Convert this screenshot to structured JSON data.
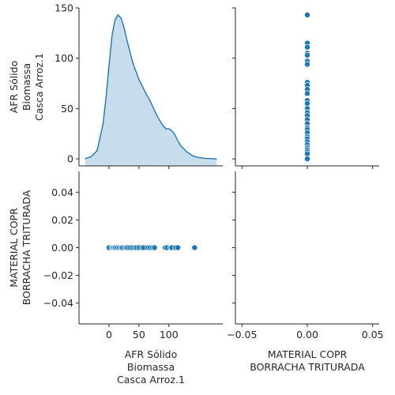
{
  "chart_data": [
    {
      "panel": "top-left",
      "type": "area",
      "description_visible": "kernel density estimate",
      "xlim": [
        -50,
        190
      ],
      "ylim": [
        -7,
        150
      ],
      "y_ticks": [
        0,
        50,
        100,
        150
      ],
      "ylabel_lines": [
        "AFR Sólido",
        "Biomassa",
        "Casca Arroz.1"
      ],
      "fill_color": "#1f77b4",
      "curve": {
        "x": [
          -40,
          -30,
          -20,
          -10,
          -5,
          0,
          5,
          10,
          15,
          20,
          25,
          30,
          40,
          50,
          60,
          70,
          80,
          90,
          95,
          100,
          105,
          110,
          115,
          120,
          130,
          140,
          150,
          160,
          170,
          180
        ],
        "y": [
          0.2,
          2,
          8,
          34,
          60,
          92,
          122,
          138,
          143,
          140,
          131,
          118,
          95,
          79,
          67,
          56,
          43,
          33,
          30,
          30,
          28,
          24,
          18,
          13,
          7,
          3,
          1.3,
          0.5,
          0.2,
          0
        ]
      }
    },
    {
      "panel": "top-right",
      "type": "scatter",
      "xlim": [
        -0.055,
        0.055
      ],
      "ylim": [
        -7,
        150
      ],
      "color": "#1f77b4",
      "points": {
        "x": [
          0,
          0,
          0,
          0,
          0,
          0,
          0,
          0,
          0,
          0,
          0,
          0,
          0,
          0,
          0,
          0,
          0,
          0,
          0,
          0,
          0,
          0,
          0,
          0,
          0,
          0,
          0,
          0,
          0,
          0
        ],
        "y": [
          143,
          115,
          111,
          105,
          103,
          97,
          94,
          76,
          73,
          69,
          65,
          58,
          55,
          50,
          46,
          43,
          39,
          35,
          31,
          29,
          26,
          22,
          20,
          17,
          14,
          11,
          9,
          7,
          5,
          0
        ]
      }
    },
    {
      "panel": "bottom-left",
      "type": "scatter",
      "xlim": [
        -50,
        190
      ],
      "ylim": [
        -0.055,
        0.055
      ],
      "x_ticks": [
        0,
        50,
        100
      ],
      "y_ticks": [
        -0.04,
        -0.02,
        0.0,
        0.02,
        0.04
      ],
      "y_tick_labels": [
        "−0.04",
        "−0.02",
        "0.00",
        "0.02",
        "0.04"
      ],
      "xlabel_lines": [
        "AFR Sólido",
        "Biomassa",
        "Casca Arroz.1"
      ],
      "ylabel_lines": [
        "MATERIAL COPR",
        "BORRACHA TRITURADA"
      ],
      "color": "#1f77b4",
      "points": {
        "x": [
          0,
          5,
          7,
          9,
          11,
          14,
          17,
          20,
          22,
          26,
          29,
          31,
          35,
          39,
          43,
          46,
          50,
          55,
          58,
          65,
          69,
          73,
          76,
          94,
          97,
          103,
          105,
          111,
          115,
          143
        ],
        "y": [
          0,
          0,
          0,
          0,
          0,
          0,
          0,
          0,
          0,
          0,
          0,
          0,
          0,
          0,
          0,
          0,
          0,
          0,
          0,
          0,
          0,
          0,
          0,
          0,
          0,
          0,
          0,
          0,
          0,
          0
        ]
      }
    },
    {
      "panel": "bottom-right",
      "type": "area",
      "note_visible": "empty",
      "xlim": [
        -0.055,
        0.055
      ],
      "x_ticks": [
        -0.05,
        0.0,
        0.05
      ],
      "x_tick_labels": [
        "−0.05",
        "0.00",
        "0.05"
      ],
      "xlabel_lines": [
        "MATERIAL COPR",
        "BORRACHA TRITURADA"
      ]
    }
  ]
}
